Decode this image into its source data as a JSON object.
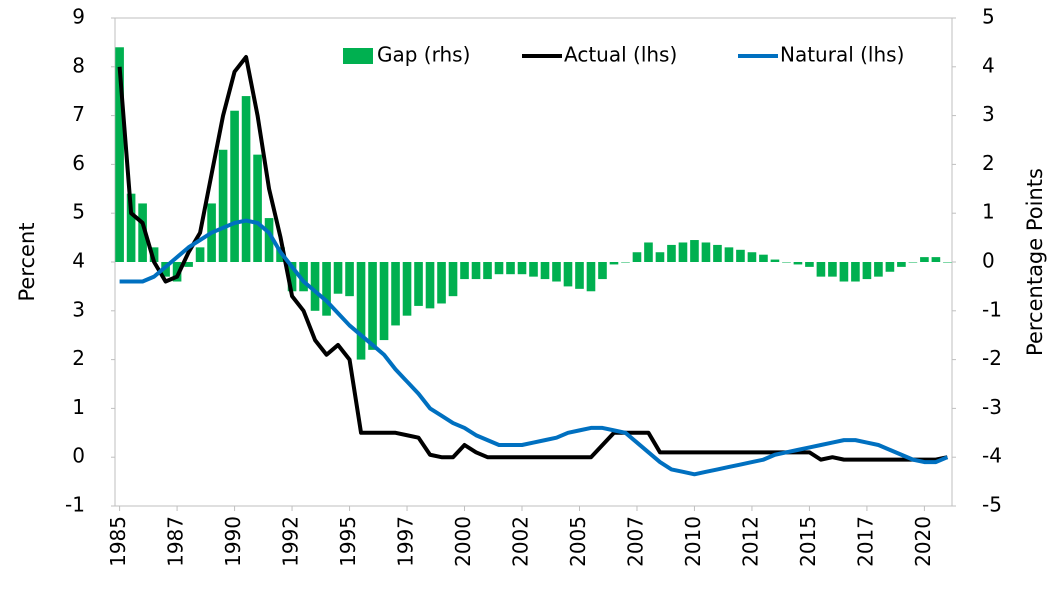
{
  "chart_data": {
    "type": "bar-line",
    "y_label": "Percent",
    "y2_label": "Percentage Points",
    "xlim": [
      1984.8,
      2021.2
    ],
    "xticks": [
      {
        "value": 1985,
        "label": "1985"
      },
      {
        "value": 1987.5,
        "label": "1987"
      },
      {
        "value": 1990,
        "label": "1990"
      },
      {
        "value": 1992.5,
        "label": "1992"
      },
      {
        "value": 1995,
        "label": "1995"
      },
      {
        "value": 1997.5,
        "label": "1997"
      },
      {
        "value": 2000,
        "label": "2000"
      },
      {
        "value": 2002.5,
        "label": "2002"
      },
      {
        "value": 2005,
        "label": "2005"
      },
      {
        "value": 2007.5,
        "label": "2007"
      },
      {
        "value": 2010,
        "label": "2010"
      },
      {
        "value": 2012.5,
        "label": "2012"
      },
      {
        "value": 2015,
        "label": "2015"
      },
      {
        "value": 2017.5,
        "label": "2017"
      },
      {
        "value": 2020,
        "label": "2020"
      }
    ],
    "ylim": [
      -1,
      9
    ],
    "yticks": [
      -1,
      0,
      1,
      2,
      3,
      4,
      5,
      6,
      7,
      8,
      9
    ],
    "y2lim": [
      -5,
      5
    ],
    "y2ticks": [
      -5,
      -4,
      -3,
      -2,
      -1,
      0,
      1,
      2,
      3,
      4,
      5
    ],
    "legend": "top-right",
    "x": [
      1985.0,
      1985.5,
      1986.0,
      1986.5,
      1987.0,
      1987.5,
      1988.0,
      1988.5,
      1989.0,
      1989.5,
      1990.0,
      1990.5,
      1991.0,
      1991.5,
      1992.0,
      1992.5,
      1993.0,
      1993.5,
      1994.0,
      1994.5,
      1995.0,
      1995.5,
      1996.0,
      1996.5,
      1997.0,
      1997.5,
      1998.0,
      1998.5,
      1999.0,
      1999.5,
      2000.0,
      2000.5,
      2001.0,
      2001.5,
      2002.0,
      2002.5,
      2003.0,
      2003.5,
      2004.0,
      2004.5,
      2005.0,
      2005.5,
      2006.0,
      2006.5,
      2007.0,
      2007.5,
      2008.0,
      2008.5,
      2009.0,
      2009.5,
      2010.0,
      2010.5,
      2011.0,
      2011.5,
      2012.0,
      2012.5,
      2013.0,
      2013.5,
      2014.0,
      2014.5,
      2015.0,
      2015.5,
      2016.0,
      2016.5,
      2017.0,
      2017.5,
      2018.0,
      2018.5,
      2019.0,
      2019.5,
      2020.0,
      2020.5,
      2021.0
    ],
    "series": [
      {
        "name": "Gap (rhs)",
        "kind": "bar",
        "axis": "y2",
        "color": "#00b050",
        "values": [
          4.4,
          1.4,
          1.2,
          0.3,
          -0.3,
          -0.4,
          -0.1,
          0.3,
          1.2,
          2.3,
          3.1,
          3.4,
          2.2,
          0.9,
          0.3,
          -0.6,
          -0.6,
          -1.0,
          -1.1,
          -0.65,
          -0.7,
          -2.0,
          -1.8,
          -1.6,
          -1.3,
          -1.1,
          -0.9,
          -0.95,
          -0.85,
          -0.7,
          -0.35,
          -0.35,
          -0.35,
          -0.25,
          -0.25,
          -0.25,
          -0.3,
          -0.35,
          -0.4,
          -0.5,
          -0.55,
          -0.6,
          -0.35,
          -0.05,
          0.0,
          0.2,
          0.4,
          0.2,
          0.35,
          0.4,
          0.45,
          0.4,
          0.35,
          0.3,
          0.25,
          0.2,
          0.15,
          0.05,
          0.0,
          -0.05,
          -0.1,
          -0.3,
          -0.3,
          -0.4,
          -0.4,
          -0.35,
          -0.3,
          -0.2,
          -0.1,
          0.0,
          0.1,
          0.1,
          0.0
        ]
      },
      {
        "name": "Actual (lhs)",
        "kind": "line",
        "color": "#000000",
        "values": [
          8.0,
          5.0,
          4.8,
          4.0,
          3.6,
          3.7,
          4.2,
          4.6,
          5.8,
          7.0,
          7.9,
          8.2,
          7.0,
          5.5,
          4.5,
          3.3,
          3.0,
          2.4,
          2.1,
          2.3,
          2.0,
          0.5,
          0.5,
          0.5,
          0.5,
          0.45,
          0.4,
          0.05,
          0.0,
          0.0,
          0.25,
          0.1,
          0.0,
          0.0,
          0.0,
          0.0,
          0.0,
          0.0,
          0.0,
          0.0,
          0.0,
          0.0,
          0.25,
          0.5,
          0.5,
          0.5,
          0.5,
          0.1,
          0.1,
          0.1,
          0.1,
          0.1,
          0.1,
          0.1,
          0.1,
          0.1,
          0.1,
          0.1,
          0.1,
          0.1,
          0.1,
          -0.05,
          0.0,
          -0.05,
          -0.05,
          -0.05,
          -0.05,
          -0.05,
          -0.05,
          -0.05,
          -0.05,
          -0.05,
          0.0
        ]
      },
      {
        "name": "Natural (lhs)",
        "kind": "line",
        "color": "#0070c0",
        "values": [
          3.6,
          3.6,
          3.6,
          3.7,
          3.9,
          4.1,
          4.3,
          4.45,
          4.6,
          4.7,
          4.8,
          4.85,
          4.8,
          4.6,
          4.2,
          3.9,
          3.6,
          3.4,
          3.2,
          2.95,
          2.7,
          2.5,
          2.3,
          2.1,
          1.8,
          1.55,
          1.3,
          1.0,
          0.85,
          0.7,
          0.6,
          0.45,
          0.35,
          0.25,
          0.25,
          0.25,
          0.3,
          0.35,
          0.4,
          0.5,
          0.55,
          0.6,
          0.6,
          0.55,
          0.5,
          0.3,
          0.1,
          -0.1,
          -0.25,
          -0.3,
          -0.35,
          -0.3,
          -0.25,
          -0.2,
          -0.15,
          -0.1,
          -0.05,
          0.05,
          0.1,
          0.15,
          0.2,
          0.25,
          0.3,
          0.35,
          0.35,
          0.3,
          0.25,
          0.15,
          0.05,
          -0.05,
          -0.1,
          -0.1,
          0.0
        ]
      }
    ]
  }
}
